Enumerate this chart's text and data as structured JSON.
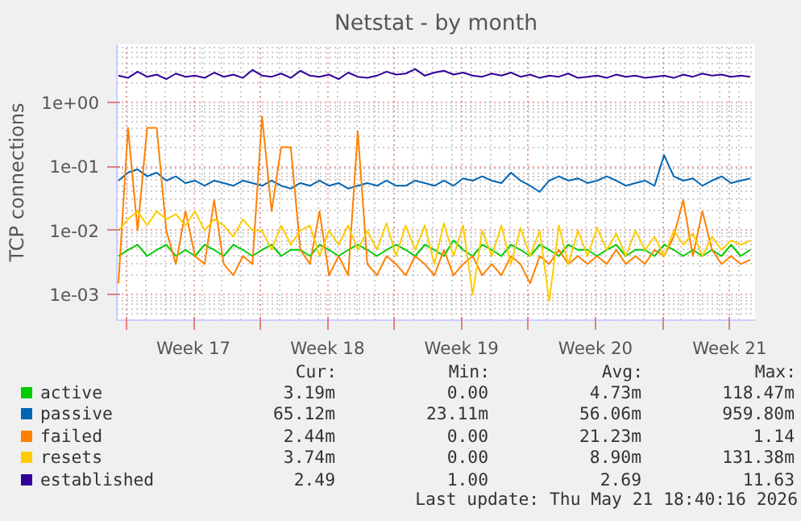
{
  "chart_data": {
    "type": "line",
    "title": "Netstat - by month",
    "ylabel": "TCP connections",
    "log": true,
    "grid": true,
    "legend": "bottom",
    "xlim": [
      "2026-04-19T12:00",
      "2026-05-22T20:00"
    ],
    "ylim": [
      0.0004,
      8
    ],
    "xticks": [
      {
        "value": "2026-04-20",
        "label": null
      },
      {
        "value": "2026-04-23T12:00",
        "label": "Week 17"
      },
      {
        "value": "2026-04-27",
        "label": null
      },
      {
        "value": "2026-04-30T12:00",
        "label": "Week 18"
      },
      {
        "value": "2026-05-04",
        "label": null
      },
      {
        "value": "2026-05-07T12:00",
        "label": "Week 19"
      },
      {
        "value": "2026-05-11",
        "label": null
      },
      {
        "value": "2026-05-14T12:00",
        "label": "Week 20"
      },
      {
        "value": "2026-05-18",
        "label": null
      },
      {
        "value": "2026-05-21T12:00",
        "label": "Week 21"
      }
    ],
    "yticks": [
      {
        "value": 0.001,
        "label": "1e-03"
      },
      {
        "value": 0.01,
        "label": "1e-02"
      },
      {
        "value": 0.1,
        "label": "1e-01"
      },
      {
        "value": 1,
        "label": "1e+00"
      }
    ],
    "x": [
      "2026-04-19T14:00",
      "2026-04-20T02:00",
      "2026-04-20T14:00",
      "2026-04-21T02:00",
      "2026-04-21T14:00",
      "2026-04-22T02:00",
      "2026-04-22T14:00",
      "2026-04-23T02:00",
      "2026-04-23T14:00",
      "2026-04-24T02:00",
      "2026-04-24T14:00",
      "2026-04-25T02:00",
      "2026-04-25T14:00",
      "2026-04-26T02:00",
      "2026-04-26T14:00",
      "2026-04-27T02:00",
      "2026-04-27T14:00",
      "2026-04-28T02:00",
      "2026-04-28T14:00",
      "2026-04-29T02:00",
      "2026-04-29T14:00",
      "2026-04-30T02:00",
      "2026-04-30T14:00",
      "2026-05-01T02:00",
      "2026-05-01T14:00",
      "2026-05-02T02:00",
      "2026-05-02T14:00",
      "2026-05-03T02:00",
      "2026-05-03T14:00",
      "2026-05-04T02:00",
      "2026-05-04T14:00",
      "2026-05-05T02:00",
      "2026-05-05T14:00",
      "2026-05-06T02:00",
      "2026-05-06T14:00",
      "2026-05-07T02:00",
      "2026-05-07T14:00",
      "2026-05-08T02:00",
      "2026-05-08T14:00",
      "2026-05-09T02:00",
      "2026-05-09T14:00",
      "2026-05-10T02:00",
      "2026-05-10T14:00",
      "2026-05-11T02:00",
      "2026-05-11T14:00",
      "2026-05-12T02:00",
      "2026-05-12T14:00",
      "2026-05-13T02:00",
      "2026-05-13T14:00",
      "2026-05-14T02:00",
      "2026-05-14T14:00",
      "2026-05-15T02:00",
      "2026-05-15T14:00",
      "2026-05-16T02:00",
      "2026-05-16T14:00",
      "2026-05-17T02:00",
      "2026-05-17T14:00",
      "2026-05-18T02:00",
      "2026-05-18T14:00",
      "2026-05-19T02:00",
      "2026-05-19T14:00",
      "2026-05-20T02:00",
      "2026-05-20T14:00",
      "2026-05-21T02:00",
      "2026-05-21T14:00",
      "2026-05-22T02:00",
      "2026-05-22T14:00"
    ],
    "series": [
      {
        "name": "active",
        "color": "#00cc00",
        "values": [
          0.004,
          0.005,
          0.006,
          0.004,
          0.005,
          0.006,
          0.004,
          0.005,
          0.004,
          0.006,
          0.005,
          0.004,
          0.006,
          0.005,
          0.004,
          0.005,
          0.006,
          0.004,
          0.005,
          0.005,
          0.004,
          0.006,
          0.005,
          0.004,
          0.005,
          0.006,
          0.005,
          0.004,
          0.005,
          0.006,
          0.005,
          0.004,
          0.006,
          0.005,
          0.004,
          0.007,
          0.005,
          0.004,
          0.006,
          0.005,
          0.004,
          0.006,
          0.005,
          0.004,
          0.006,
          0.005,
          0.004,
          0.006,
          0.005,
          0.005,
          0.004,
          0.005,
          0.006,
          0.004,
          0.005,
          0.005,
          0.004,
          0.006,
          0.005,
          0.004,
          0.005,
          0.004,
          0.005,
          0.004,
          0.006,
          0.004,
          0.005
        ]
      },
      {
        "name": "passive",
        "color": "#0066b3",
        "values": [
          0.06,
          0.08,
          0.09,
          0.07,
          0.08,
          0.06,
          0.07,
          0.055,
          0.06,
          0.05,
          0.06,
          0.055,
          0.05,
          0.06,
          0.055,
          0.05,
          0.06,
          0.05,
          0.045,
          0.055,
          0.05,
          0.06,
          0.05,
          0.055,
          0.045,
          0.05,
          0.055,
          0.05,
          0.06,
          0.05,
          0.05,
          0.06,
          0.055,
          0.05,
          0.06,
          0.05,
          0.065,
          0.06,
          0.07,
          0.06,
          0.055,
          0.08,
          0.06,
          0.05,
          0.04,
          0.06,
          0.07,
          0.06,
          0.065,
          0.055,
          0.06,
          0.07,
          0.06,
          0.05,
          0.055,
          0.06,
          0.05,
          0.15,
          0.07,
          0.06,
          0.065,
          0.05,
          0.06,
          0.07,
          0.055,
          0.06,
          0.065
        ]
      },
      {
        "name": "failed",
        "color": "#ff8000",
        "values": [
          0.0015,
          0.4,
          0.01,
          0.4,
          0.4,
          0.01,
          0.003,
          0.02,
          0.004,
          0.003,
          0.03,
          0.003,
          0.002,
          0.004,
          0.003,
          0.6,
          0.02,
          0.2,
          0.2,
          0.005,
          0.003,
          0.02,
          0.002,
          0.004,
          0.002,
          0.35,
          0.003,
          0.002,
          0.004,
          0.003,
          0.002,
          0.004,
          0.003,
          0.002,
          0.005,
          0.002,
          0.003,
          0.004,
          0.002,
          0.003,
          0.002,
          0.004,
          0.003,
          0.0015,
          0.004,
          0.003,
          0.005,
          0.003,
          0.004,
          0.003,
          0.004,
          0.003,
          0.005,
          0.003,
          0.004,
          0.003,
          0.005,
          0.004,
          0.008,
          0.03,
          0.004,
          0.02,
          0.005,
          0.003,
          0.004,
          0.003,
          0.0035
        ]
      },
      {
        "name": "resets",
        "color": "#ffcc00",
        "values": [
          0.01,
          0.015,
          0.02,
          0.012,
          0.02,
          0.015,
          0.018,
          0.012,
          0.02,
          0.01,
          0.015,
          0.012,
          0.008,
          0.015,
          0.01,
          0.01,
          0.005,
          0.012,
          0.006,
          0.01,
          0.012,
          0.004,
          0.01,
          0.006,
          0.012,
          0.005,
          0.01,
          0.005,
          0.013,
          0.004,
          0.012,
          0.005,
          0.012,
          0.003,
          0.013,
          0.004,
          0.012,
          0.001,
          0.01,
          0.004,
          0.012,
          0.003,
          0.011,
          0.004,
          0.01,
          0.0008,
          0.012,
          0.003,
          0.01,
          0.004,
          0.011,
          0.005,
          0.009,
          0.004,
          0.01,
          0.005,
          0.008,
          0.004,
          0.01,
          0.006,
          0.009,
          0.004,
          0.008,
          0.005,
          0.007,
          0.006,
          0.007
        ]
      },
      {
        "name": "established",
        "color": "#330099",
        "values": [
          2.6,
          2.4,
          3.0,
          2.5,
          2.7,
          2.3,
          2.8,
          2.5,
          2.6,
          2.4,
          2.9,
          2.5,
          2.7,
          2.4,
          3.2,
          2.6,
          2.5,
          2.8,
          2.4,
          3.1,
          2.6,
          2.5,
          2.7,
          2.3,
          2.9,
          2.5,
          2.4,
          2.6,
          3.0,
          2.7,
          2.8,
          3.3,
          2.6,
          2.9,
          3.1,
          2.7,
          2.9,
          2.6,
          2.5,
          2.8,
          2.6,
          2.9,
          2.5,
          2.7,
          2.4,
          2.6,
          2.5,
          2.8,
          2.4,
          2.5,
          2.6,
          2.4,
          2.7,
          2.5,
          2.6,
          2.4,
          2.5,
          2.6,
          2.4,
          2.7,
          2.5,
          2.8,
          2.6,
          2.7,
          2.5,
          2.6,
          2.5
        ]
      }
    ],
    "annotations": [
      "Cur:",
      "Min:",
      "Avg:",
      "Max:",
      "3.19m",
      "0.00",
      "4.73m",
      "118.47m",
      "65.12m",
      "23.11m",
      "56.06m",
      "959.80m",
      "2.44m",
      "0.00",
      "21.23m",
      "1.14",
      "3.74m",
      "0.00",
      "8.90m",
      "131.38m",
      "2.49",
      "1.00",
      "2.69",
      "11.63",
      "Last update: Thu May 21 18:40:16 2026"
    ]
  }
}
